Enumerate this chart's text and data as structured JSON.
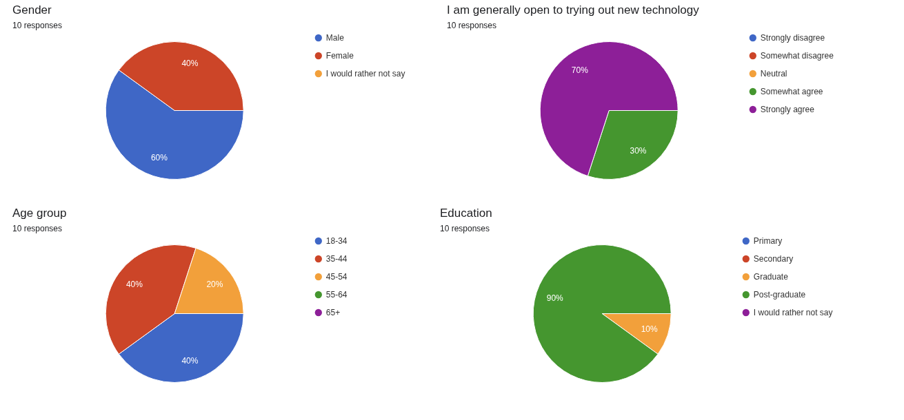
{
  "chart_data": [
    {
      "type": "pie",
      "title": "Gender",
      "subtitle": "10 responses",
      "categories": [
        "Male",
        "Female",
        "I would rather not say"
      ],
      "values": [
        60,
        40,
        0
      ],
      "value_labels": [
        "60%",
        "40%",
        null
      ],
      "colors": [
        "#3f67c6",
        "#cc4528",
        "#f2a03b"
      ],
      "legend": "right"
    },
    {
      "type": "pie",
      "title": "I am generally open to trying out new technology",
      "subtitle": "10 responses",
      "categories": [
        "Strongly disagree",
        "Somewhat disagree",
        "Neutral",
        "Somewhat agree",
        "Strongly agree"
      ],
      "values": [
        0,
        0,
        0,
        30,
        70
      ],
      "value_labels": [
        null,
        null,
        null,
        "30%",
        "70%"
      ],
      "colors": [
        "#3f67c6",
        "#cc4528",
        "#f2a03b",
        "#45962f",
        "#8d1f98"
      ],
      "legend": "right"
    },
    {
      "type": "pie",
      "title": "Age group",
      "subtitle": "10 responses",
      "categories": [
        "18-34",
        "35-44",
        "45-54",
        "55-64",
        "65+"
      ],
      "values": [
        40,
        40,
        20,
        0,
        0
      ],
      "value_labels": [
        "40%",
        "40%",
        "20%",
        null,
        null
      ],
      "colors": [
        "#3f67c6",
        "#cc4528",
        "#f2a03b",
        "#45962f",
        "#8d1f98"
      ],
      "legend": "right"
    },
    {
      "type": "pie",
      "title": "Education",
      "subtitle": "10 responses",
      "categories": [
        "Primary",
        "Secondary",
        "Graduate",
        "Post-graduate",
        "I would rather not say"
      ],
      "values": [
        0,
        0,
        10,
        90,
        0
      ],
      "value_labels": [
        null,
        null,
        "10%",
        "90%",
        null
      ],
      "colors": [
        "#3f67c6",
        "#cc4528",
        "#f2a03b",
        "#45962f",
        "#8d1f98"
      ],
      "legend": "right"
    }
  ]
}
